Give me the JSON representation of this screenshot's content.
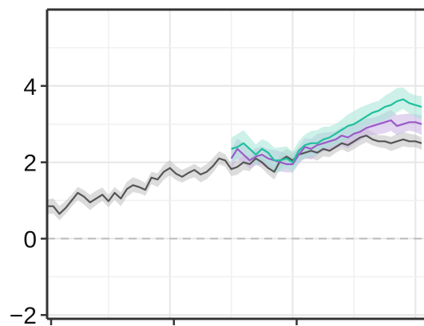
{
  "chart_data": {
    "type": "line",
    "title": "",
    "xlabel": "",
    "ylabel": "",
    "x_tick_labels_visible": false,
    "ylim": [
      -2.1,
      6
    ],
    "xlim": [
      0,
      61
    ],
    "y_ticks": [
      -2,
      0,
      2,
      4
    ],
    "y_tick_labels": [
      "−2",
      "0",
      "2",
      "4"
    ],
    "x_ticks": [
      0,
      20,
      40
    ],
    "grid": true,
    "reference_line": {
      "y": 0,
      "style": "dashed",
      "color": "#bbbbbb"
    },
    "legend": "none",
    "series": [
      {
        "color": "#555555",
        "band_color": "#bfbfbf",
        "x": [
          0,
          1,
          2,
          3,
          4,
          5,
          6,
          7,
          8,
          9,
          10,
          11,
          12,
          13,
          14,
          15,
          16,
          17,
          18,
          19,
          20,
          21,
          22,
          23,
          24,
          25,
          26,
          27,
          28,
          29,
          30,
          31,
          32,
          33,
          34,
          35,
          36,
          37,
          38,
          39,
          40,
          41,
          42,
          43,
          44,
          45,
          46,
          47,
          48,
          49,
          50,
          51,
          52,
          53,
          54,
          55,
          56,
          57,
          58,
          59,
          60,
          61
        ],
        "values": [
          0.85,
          0.85,
          0.65,
          0.8,
          1.0,
          1.2,
          1.1,
          0.95,
          1.05,
          1.15,
          0.98,
          1.2,
          1.05,
          1.3,
          1.4,
          1.35,
          1.28,
          1.6,
          1.55,
          1.75,
          1.85,
          1.7,
          1.62,
          1.72,
          1.8,
          1.68,
          1.75,
          1.9,
          2.1,
          2.05,
          1.82,
          1.88,
          2.0,
          1.95,
          2.1,
          2.0,
          1.85,
          1.75,
          2.05,
          2.15,
          2.05,
          2.2,
          2.25,
          2.3,
          2.25,
          2.35,
          2.3,
          2.4,
          2.5,
          2.45,
          2.55,
          2.65,
          2.7,
          2.6,
          2.55,
          2.55,
          2.5,
          2.55,
          2.6,
          2.55,
          2.55,
          2.5
        ],
        "band_halfwidth": 0.18
      },
      {
        "color": "#9a5ac8",
        "band_color": "#c9b3e3",
        "x": [
          30,
          31,
          32,
          33,
          34,
          35,
          36,
          37,
          38,
          39,
          40,
          41,
          42,
          43,
          44,
          45,
          46,
          47,
          48,
          49,
          50,
          51,
          52,
          53,
          54,
          55,
          56,
          57,
          58,
          59,
          60,
          61
        ],
        "values": [
          2.1,
          2.35,
          2.2,
          2.05,
          2.15,
          2.2,
          2.1,
          2.05,
          2.0,
          1.95,
          1.95,
          2.2,
          2.4,
          2.35,
          2.45,
          2.5,
          2.55,
          2.6,
          2.7,
          2.65,
          2.75,
          2.8,
          2.9,
          2.95,
          3.0,
          3.05,
          3.1,
          2.95,
          3.0,
          3.05,
          3.05,
          3.0
        ],
        "band_halfwidth": 0.25
      },
      {
        "color": "#1fbf9e",
        "band_color": "#a4e5d6",
        "x": [
          30,
          31,
          32,
          33,
          34,
          35,
          36,
          37,
          38,
          39,
          40,
          41,
          42,
          43,
          44,
          45,
          46,
          47,
          48,
          49,
          50,
          51,
          52,
          53,
          54,
          55,
          56,
          57,
          58,
          59,
          60,
          61
        ],
        "values": [
          2.35,
          2.4,
          2.5,
          2.35,
          2.2,
          2.35,
          2.25,
          2.05,
          2.05,
          2.1,
          2.0,
          2.3,
          2.45,
          2.5,
          2.5,
          2.6,
          2.65,
          2.75,
          2.85,
          2.95,
          3.0,
          3.1,
          3.2,
          3.3,
          3.35,
          3.45,
          3.5,
          3.6,
          3.65,
          3.55,
          3.5,
          3.45
        ],
        "band_halfwidth": 0.3
      }
    ]
  }
}
